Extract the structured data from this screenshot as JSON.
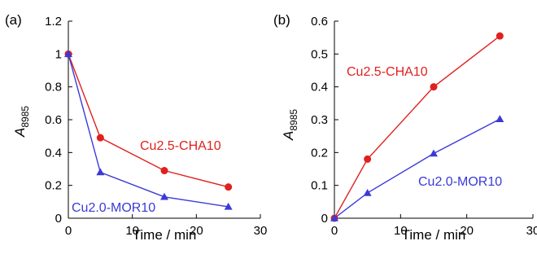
{
  "chart_data": [
    {
      "type": "line",
      "panel_label": "(a)",
      "xlabel": "Time / min",
      "ylabel_main": "A",
      "ylabel_sub": "8985",
      "xlim": [
        0,
        30
      ],
      "ylim": [
        0,
        1.2
      ],
      "xticks": [
        "0",
        "10",
        "20",
        "30"
      ],
      "yticks": [
        "0",
        "0.2",
        "0.4",
        "0.6",
        "0.8",
        "1",
        "1.2"
      ],
      "grid": false,
      "legend": "none",
      "series": [
        {
          "name": "Cu2.5-CHA10",
          "color": "#e0201e",
          "marker": "circle",
          "x": [
            0,
            5,
            15,
            25
          ],
          "y": [
            1.0,
            0.49,
            0.29,
            0.19
          ]
        },
        {
          "name": "Cu2.0-MOR10",
          "color": "#3a3ad8",
          "marker": "triangle",
          "x": [
            0,
            5,
            15,
            25
          ],
          "y": [
            1.0,
            0.28,
            0.13,
            0.07
          ]
        }
      ]
    },
    {
      "type": "line",
      "panel_label": "(b)",
      "xlabel": "Time / min",
      "ylabel_main": "A",
      "ylabel_sub": "8985",
      "xlim": [
        0,
        30
      ],
      "ylim": [
        0,
        0.6
      ],
      "xticks": [
        "0",
        "10",
        "20",
        "30"
      ],
      "yticks": [
        "0",
        "0.1",
        "0.2",
        "0.3",
        "0.4",
        "0.5",
        "0.6"
      ],
      "grid": false,
      "legend": "none",
      "series": [
        {
          "name": "Cu2.5-CHA10",
          "color": "#e0201e",
          "marker": "circle",
          "x": [
            0,
            5,
            15,
            25
          ],
          "y": [
            0.0,
            0.18,
            0.4,
            0.555
          ]
        },
        {
          "name": "Cu2.0-MOR10",
          "color": "#3a3ad8",
          "marker": "triangle",
          "x": [
            0,
            5,
            15,
            25
          ],
          "y": [
            0.0,
            0.077,
            0.197,
            0.302
          ]
        }
      ]
    }
  ]
}
